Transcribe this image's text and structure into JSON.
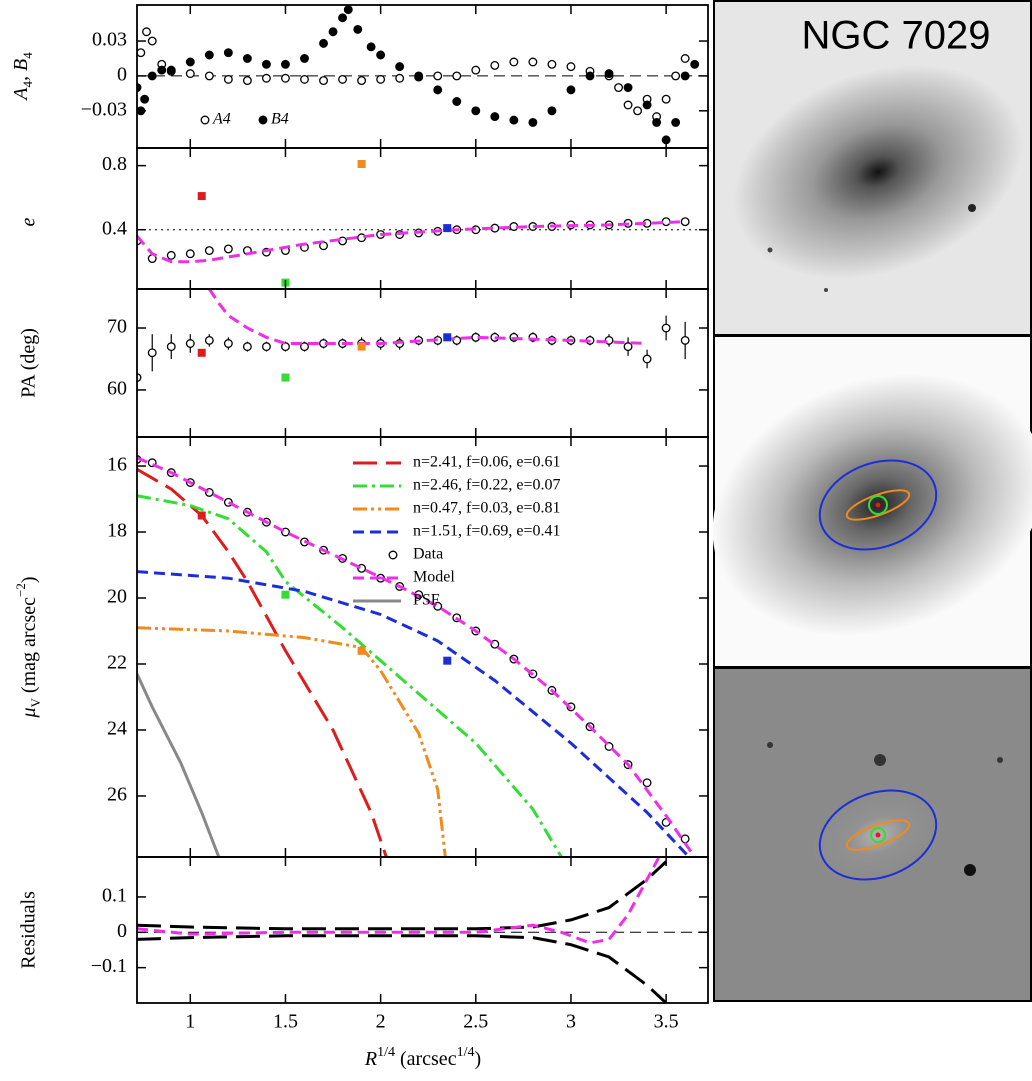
{
  "image_title": "NGC 7029",
  "chart_data": [
    {
      "type": "scatter",
      "xlim": [
        0.72,
        3.72
      ],
      "xticks": [
        1,
        1.5,
        2,
        2.5,
        3,
        3.5
      ],
      "ylim": [
        -0.062,
        0.061
      ],
      "yticks": [
        0.03,
        0,
        {
          "value": -0.03,
          "label": "−0.03"
        }
      ],
      "ylabel": [
        "A",
        "4",
        ", B",
        "4"
      ],
      "hline": 0,
      "hline_style": "dashed",
      "legend": "lower left",
      "series": [
        {
          "name": "A4",
          "marker": "open",
          "color": "#000000",
          "x": [
            0.74,
            0.77,
            0.8,
            0.85,
            0.9,
            1.0,
            1.1,
            1.2,
            1.3,
            1.4,
            1.5,
            1.6,
            1.7,
            1.8,
            1.9,
            2.0,
            2.1,
            2.2,
            2.3,
            2.4,
            2.5,
            2.6,
            2.7,
            2.8,
            2.9,
            3.0,
            3.1,
            3.2,
            3.25,
            3.3,
            3.35,
            3.4,
            3.45,
            3.5,
            3.55,
            3.6
          ],
          "values": [
            0.02,
            0.038,
            0.03,
            0.01,
            0.004,
            0.002,
            0.0,
            -0.003,
            -0.004,
            -0.002,
            -0.002,
            -0.003,
            -0.004,
            -0.003,
            -0.004,
            -0.003,
            -0.002,
            -0.001,
            0.0,
            0.0,
            0.005,
            0.009,
            0.012,
            0.012,
            0.01,
            0.008,
            0.004,
            0.0,
            -0.01,
            -0.025,
            -0.03,
            -0.02,
            -0.035,
            -0.02,
            0.0,
            0.015
          ]
        },
        {
          "name": "B4",
          "marker": "filled",
          "color": "#000000",
          "x": [
            0.72,
            0.74,
            0.76,
            0.8,
            0.85,
            0.9,
            1.0,
            1.1,
            1.2,
            1.3,
            1.4,
            1.5,
            1.6,
            1.7,
            1.75,
            1.8,
            1.83,
            1.88,
            1.95,
            2.0,
            2.1,
            2.2,
            2.3,
            2.4,
            2.5,
            2.6,
            2.7,
            2.8,
            2.9,
            3.0,
            3.1,
            3.2,
            3.3,
            3.4,
            3.45,
            3.5,
            3.55,
            3.6,
            3.65
          ],
          "values": [
            -0.01,
            -0.03,
            -0.02,
            0.0,
            0.005,
            0.005,
            0.012,
            0.018,
            0.02,
            0.015,
            0.01,
            0.01,
            0.015,
            0.028,
            0.038,
            0.05,
            0.057,
            0.04,
            0.025,
            0.018,
            0.008,
            0.0,
            -0.012,
            -0.022,
            -0.03,
            -0.035,
            -0.038,
            -0.04,
            -0.03,
            -0.012,
            0.0,
            0.002,
            -0.01,
            -0.025,
            -0.04,
            -0.055,
            -0.04,
            0.0,
            0.01
          ]
        }
      ]
    },
    {
      "type": "scatter",
      "xlim": [
        0.72,
        3.72
      ],
      "xticks": [
        1,
        1.5,
        2,
        2.5,
        3,
        3.5
      ],
      "ylim": [
        0.03,
        0.91
      ],
      "yticks": [
        0.8,
        0.4
      ],
      "ylabel": [
        "e"
      ],
      "hline": 0.4,
      "hline_style": "dotted",
      "series": [
        {
          "marker": "open",
          "color": "#000000",
          "x": [
            0.72,
            0.8,
            0.9,
            1.0,
            1.1,
            1.2,
            1.3,
            1.4,
            1.5,
            1.6,
            1.7,
            1.8,
            1.9,
            2.0,
            2.1,
            2.2,
            2.3,
            2.4,
            2.5,
            2.6,
            2.7,
            2.8,
            2.9,
            3.0,
            3.1,
            3.2,
            3.3,
            3.4,
            3.5,
            3.6
          ],
          "values": [
            0.33,
            0.22,
            0.24,
            0.25,
            0.27,
            0.28,
            0.27,
            0.26,
            0.27,
            0.29,
            0.3,
            0.33,
            0.35,
            0.37,
            0.37,
            0.38,
            0.39,
            0.4,
            0.4,
            0.41,
            0.42,
            0.42,
            0.42,
            0.43,
            0.43,
            0.43,
            0.44,
            0.44,
            0.45,
            0.45
          ]
        },
        {
          "style": "dashed",
          "color": "#ee2ee8",
          "x": [
            0.72,
            0.8,
            0.9,
            1.0,
            1.1,
            1.2,
            1.3,
            1.4,
            1.5,
            1.6,
            1.8,
            2.0,
            2.4,
            2.8,
            3.2,
            3.6
          ],
          "values": [
            0.36,
            0.25,
            0.2,
            0.2,
            0.21,
            0.23,
            0.25,
            0.27,
            0.29,
            0.31,
            0.34,
            0.37,
            0.4,
            0.42,
            0.43,
            0.45
          ]
        },
        {
          "marker": "square",
          "colors": [
            "#dd1c1c",
            "#33dd33",
            "#f08a1c",
            "#1c2ed8"
          ],
          "x": [
            1.06,
            1.5,
            1.9,
            2.35
          ],
          "values": [
            0.61,
            0.07,
            0.81,
            0.41
          ]
        }
      ]
    },
    {
      "type": "scatter",
      "xlim": [
        0.72,
        3.72
      ],
      "xticks": [
        1,
        1.5,
        2,
        2.5,
        3,
        3.5
      ],
      "ylim": [
        52.4,
        76.3
      ],
      "yticks": [
        70,
        60
      ],
      "ylabel": [
        "PA (deg)"
      ],
      "series": [
        {
          "marker": "open",
          "color": "#000000",
          "x": [
            0.72,
            0.8,
            0.9,
            1.0,
            1.1,
            1.2,
            1.3,
            1.4,
            1.5,
            1.6,
            1.7,
            1.8,
            1.9,
            2.0,
            2.1,
            2.2,
            2.3,
            2.4,
            2.5,
            2.6,
            2.7,
            2.8,
            2.9,
            3.0,
            3.1,
            3.2,
            3.3,
            3.4,
            3.5,
            3.6
          ],
          "values": [
            62,
            66,
            67,
            67.5,
            68,
            67.5,
            67,
            67,
            67,
            67,
            67.5,
            67.5,
            67.5,
            67.5,
            67.5,
            68,
            68,
            68,
            68.5,
            68.5,
            68.5,
            68.5,
            68,
            68,
            68,
            68,
            67,
            65,
            70,
            68
          ],
          "errors": [
            8,
            3,
            2,
            1.5,
            1,
            1,
            0.8,
            0.8,
            0.8,
            0.8,
            0.8,
            0.8,
            1,
            1,
            1,
            0.8,
            0.8,
            0.8,
            0.8,
            0.8,
            0.8,
            0.8,
            0.8,
            0.8,
            0.8,
            1,
            1.5,
            1.5,
            2,
            3
          ]
        },
        {
          "style": "dashed",
          "color": "#ee2ee8",
          "x": [
            1.1,
            1.15,
            1.2,
            1.3,
            1.4,
            1.5,
            1.7,
            2.0,
            2.5,
            3.0,
            3.4
          ],
          "values": [
            76.3,
            74,
            72,
            70,
            68.5,
            67.5,
            67.5,
            67.5,
            68.5,
            68,
            67.5
          ]
        },
        {
          "marker": "square",
          "colors": [
            "#dd1c1c",
            "#33dd33",
            "#f08a1c",
            "#1c2ed8"
          ],
          "x": [
            1.06,
            1.5,
            1.9,
            2.35
          ],
          "values": [
            66,
            62,
            67,
            68.5
          ]
        }
      ]
    },
    {
      "type": "line",
      "xlim": [
        0.72,
        3.72
      ],
      "xticks": [
        1,
        1.5,
        2,
        2.5,
        3,
        3.5
      ],
      "ylim": [
        27.85,
        15.12
      ],
      "yticks": [
        16,
        18,
        20,
        22,
        24,
        26
      ],
      "ylabel": [
        "μ",
        "V",
        " (mag arcsec",
        "−2",
        ")"
      ],
      "legend": "upper right",
      "series": [
        {
          "name": "n=2.41,  f=0.06,  e=0.61",
          "style": "longdash",
          "color": "#dd1c1c",
          "x": [
            0.72,
            0.9,
            1.06,
            1.2,
            1.3,
            1.5,
            1.75,
            1.95,
            2.03
          ],
          "values": [
            16.1,
            16.7,
            17.5,
            18.6,
            19.5,
            21.6,
            24.0,
            26.5,
            27.85
          ]
        },
        {
          "name": "n=2.46,  f=0.22,  e=0.07",
          "style": "dashdot",
          "color": "#33dd33",
          "x": [
            0.72,
            1.0,
            1.2,
            1.4,
            1.5,
            1.8,
            2.1,
            2.5,
            2.8,
            2.95
          ],
          "values": [
            16.9,
            17.2,
            17.6,
            18.6,
            19.5,
            20.9,
            22.4,
            24.4,
            26.4,
            27.85
          ]
        },
        {
          "name": "n=0.47,  f=0.03,  e=0.81",
          "style": "dashdotdot",
          "color": "#f08a1c",
          "x": [
            0.72,
            1.2,
            1.6,
            1.9,
            2.0,
            2.2,
            2.3,
            2.34
          ],
          "values": [
            20.9,
            21.0,
            21.2,
            21.5,
            22.2,
            24.1,
            25.8,
            27.85
          ]
        },
        {
          "name": "n=1.51,  f=0.69,  e=0.41",
          "style": "dashed",
          "color": "#1c2ed8",
          "x": [
            0.72,
            1.2,
            1.6,
            2.0,
            2.3,
            2.6,
            3.0,
            3.4,
            3.62
          ],
          "values": [
            19.2,
            19.4,
            19.8,
            20.5,
            21.3,
            22.5,
            24.4,
            26.5,
            27.85
          ]
        },
        {
          "name": "Data",
          "marker": "open",
          "color": "#000000",
          "x": [
            0.72,
            0.8,
            0.9,
            1.0,
            1.1,
            1.2,
            1.3,
            1.4,
            1.5,
            1.6,
            1.7,
            1.8,
            1.9,
            2.0,
            2.1,
            2.2,
            2.3,
            2.4,
            2.5,
            2.6,
            2.7,
            2.8,
            2.9,
            3.0,
            3.1,
            3.2,
            3.3,
            3.4,
            3.5,
            3.6
          ],
          "values": [
            15.8,
            15.9,
            16.2,
            16.5,
            16.8,
            17.1,
            17.4,
            17.7,
            18.0,
            18.3,
            18.55,
            18.8,
            19.1,
            19.4,
            19.65,
            19.9,
            20.25,
            20.6,
            21.0,
            21.4,
            21.85,
            22.3,
            22.8,
            23.3,
            23.9,
            24.5,
            25.05,
            25.6,
            26.8,
            27.3
          ]
        },
        {
          "name": "Model",
          "style": "dashed",
          "color": "#ee2ee8",
          "x": [
            0.72,
            0.9,
            1.1,
            1.3,
            1.5,
            1.7,
            1.9,
            2.1,
            2.3,
            2.5,
            2.7,
            2.9,
            3.1,
            3.3,
            3.5,
            3.65
          ],
          "values": [
            15.75,
            16.2,
            16.8,
            17.4,
            18.0,
            18.55,
            19.1,
            19.65,
            20.25,
            21.0,
            21.85,
            22.8,
            23.9,
            25.05,
            26.6,
            27.85
          ]
        },
        {
          "name": "PSF",
          "style": "solid",
          "color": "#888888",
          "x": [
            0.72,
            0.8,
            0.95,
            1.06,
            1.15
          ],
          "values": [
            22.3,
            23.3,
            25.0,
            26.5,
            27.85
          ]
        },
        {
          "marker": "square",
          "colors": [
            "#dd1c1c",
            "#33dd33",
            "#f08a1c",
            "#1c2ed8"
          ],
          "x": [
            1.06,
            1.5,
            1.9,
            2.35
          ],
          "values": [
            17.5,
            19.9,
            21.6,
            21.9
          ]
        }
      ]
    },
    {
      "type": "line",
      "xlim": [
        0.72,
        3.72
      ],
      "xticks": [
        1,
        1.5,
        2,
        2.5,
        3,
        3.5
      ],
      "ylim": [
        -0.2,
        0.213
      ],
      "yticks": [
        0.1,
        0,
        {
          "value": -0.1,
          "label": "−0.1"
        }
      ],
      "ylabel": [
        "Residuals"
      ],
      "xlabel": [
        "R",
        "1/4",
        " (arcsec",
        "1/4",
        ")"
      ],
      "hline": 0,
      "hline_style": "dashed",
      "series": [
        {
          "style": "longdash",
          "color": "#000000",
          "x": [
            0.72,
            1.0,
            1.5,
            2.0,
            2.5,
            2.8,
            3.0,
            3.2,
            3.4,
            3.5
          ],
          "values": [
            0.02,
            0.015,
            0.01,
            0.01,
            0.01,
            0.015,
            0.035,
            0.07,
            0.15,
            0.2
          ]
        },
        {
          "style": "longdash",
          "color": "#000000",
          "x": [
            0.72,
            1.0,
            1.5,
            2.0,
            2.5,
            2.8,
            3.0,
            3.2,
            3.4,
            3.5
          ],
          "values": [
            -0.02,
            -0.015,
            -0.01,
            -0.01,
            -0.01,
            -0.015,
            -0.035,
            -0.07,
            -0.15,
            -0.2
          ]
        },
        {
          "style": "dashed",
          "color": "#ee2ee8",
          "x": [
            0.72,
            1.0,
            1.5,
            2.0,
            2.5,
            2.8,
            2.95,
            3.1,
            3.2,
            3.3,
            3.4,
            3.46
          ],
          "values": [
            0.01,
            -0.005,
            0.0,
            0.0,
            0.0,
            0.02,
            0.0,
            -0.03,
            -0.02,
            0.05,
            0.15,
            0.21
          ]
        }
      ]
    }
  ]
}
